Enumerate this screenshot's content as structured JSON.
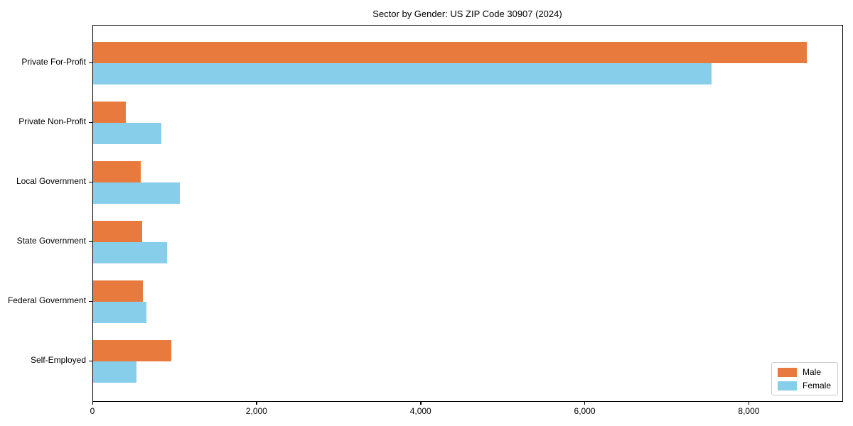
{
  "chart_data": {
    "type": "bar",
    "orientation": "horizontal",
    "title": "Sector by Gender: US ZIP Code 30907 (2024)",
    "categories": [
      "Private For-Profit",
      "Private Non-Profit",
      "Local Government",
      "State Government",
      "Federal Government",
      "Self-Employed"
    ],
    "series": [
      {
        "name": "Male",
        "color": "#E87A3E",
        "values": [
          8700,
          400,
          580,
          600,
          610,
          950
        ]
      },
      {
        "name": "Female",
        "color": "#87CEEB",
        "values": [
          7540,
          830,
          1060,
          900,
          650,
          530
        ]
      }
    ],
    "xlabel": "",
    "ylabel": "",
    "xlim": [
      0,
      9140
    ],
    "x_ticks": [
      0,
      2000,
      4000,
      6000,
      8000
    ],
    "x_tick_labels": [
      "0",
      "2,000",
      "4,000",
      "6,000",
      "8,000"
    ],
    "grid": false,
    "legend_position": "lower right",
    "plot_background": "#ffffff",
    "spine_color": "#000000"
  }
}
